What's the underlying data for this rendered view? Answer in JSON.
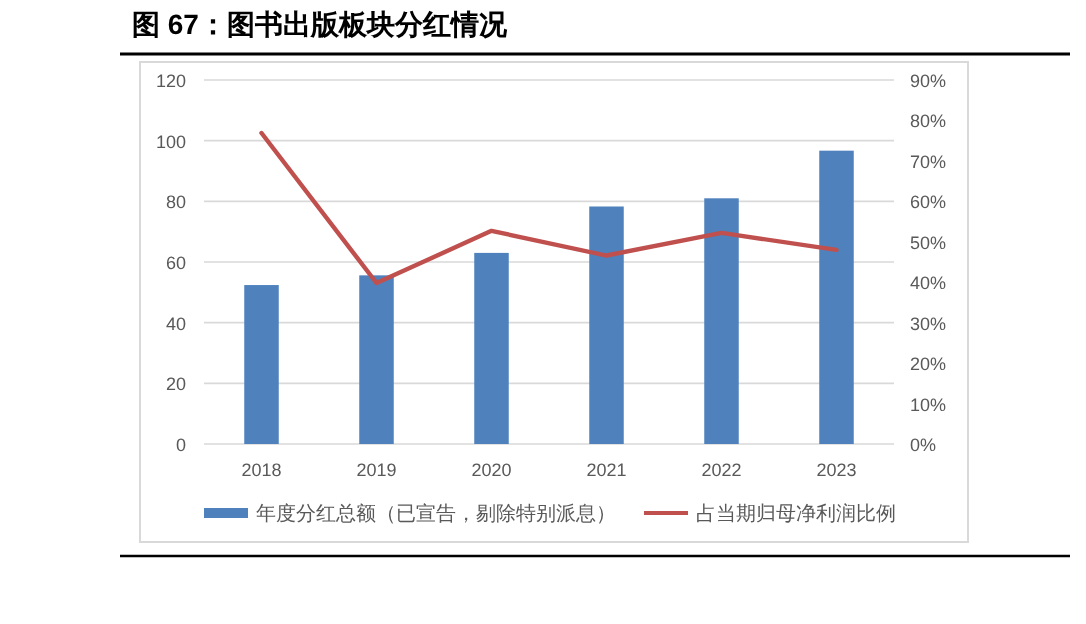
{
  "chart_data": {
    "type": "bar",
    "title": "图 67：图书出版板块分红情况",
    "categories": [
      "2018",
      "2019",
      "2020",
      "2021",
      "2022",
      "2023"
    ],
    "series": [
      {
        "name": "年度分红总额（已宣告，剔除特别派息）",
        "color": "#4f81bd",
        "values": [
          52.4,
          55.6,
          63,
          78.3,
          81,
          96.7
        ]
      },
      {
        "name": "占当期归母净利润比例",
        "type": "line",
        "axis": "y2",
        "color": "#c0504d",
        "values": [
          76.9,
          39.8,
          52.7,
          46.6,
          52.2,
          48
        ]
      }
    ],
    "ylim": [
      0,
      120
    ],
    "yticks": [
      0,
      20,
      40,
      60,
      80,
      100,
      120
    ],
    "y2lim": [
      0,
      90
    ],
    "y2ticks": [
      {
        "value": 0,
        "label": "0%"
      },
      {
        "value": 10,
        "label": "10%"
      },
      {
        "value": 20,
        "label": "20%"
      },
      {
        "value": 30,
        "label": "30%"
      },
      {
        "value": 40,
        "label": "40%"
      },
      {
        "value": 50,
        "label": "50%"
      },
      {
        "value": 60,
        "label": "60%"
      },
      {
        "value": 70,
        "label": "70%"
      },
      {
        "value": 80,
        "label": "80%"
      },
      {
        "value": 90,
        "label": "90%"
      }
    ],
    "grid": "y",
    "legend": "bottom",
    "marker": "none",
    "line_style": "solid"
  }
}
